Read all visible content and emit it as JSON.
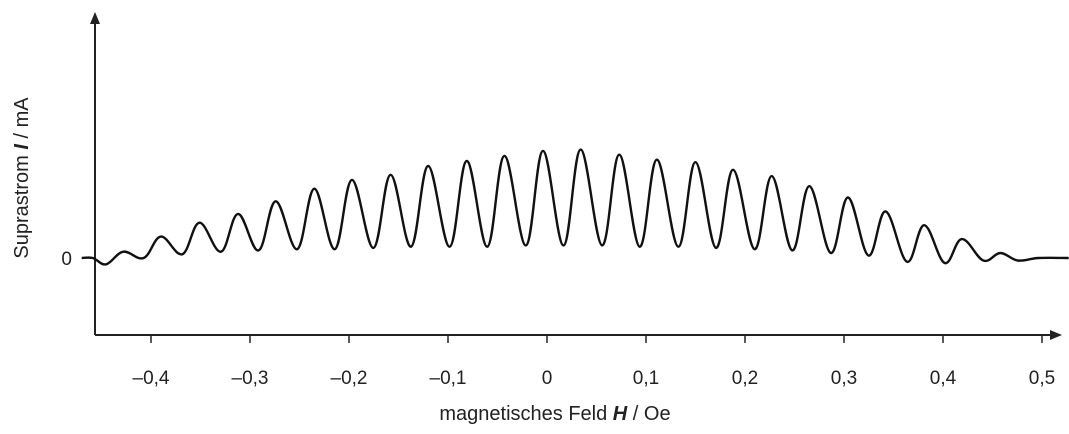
{
  "chart_data": {
    "type": "line",
    "title": "",
    "xlabel": {
      "prefix": "magnetisches Feld ",
      "symbol": "H",
      "suffix": " / Oe"
    },
    "ylabel": {
      "prefix": "Suprastrom ",
      "symbol": "I",
      "suffix": " / mA"
    },
    "xlim": [
      -0.48,
      0.53
    ],
    "ylim": [
      -0.75,
      1.88
    ],
    "grid": false,
    "legend": "none",
    "x_ticks": [
      {
        "value": -0.4,
        "label": "–0,4"
      },
      {
        "value": -0.3,
        "label": "–0,3"
      },
      {
        "value": -0.2,
        "label": "–0,2"
      },
      {
        "value": -0.1,
        "label": "–0,1"
      },
      {
        "value": 0.0,
        "label": "0"
      },
      {
        "value": 0.1,
        "label": "0,1"
      },
      {
        "value": 0.2,
        "label": "0,2"
      },
      {
        "value": 0.3,
        "label": "0,3"
      },
      {
        "value": 0.4,
        "label": "0,4"
      },
      {
        "value": 0.5,
        "label": "0,5"
      }
    ],
    "y_ticks": [
      {
        "value": 0,
        "label": "0"
      }
    ],
    "series": [
      {
        "color": "#111111",
        "description_units": "x in Oe, y in mA (relative)",
        "fringe_period": 0.0385,
        "fringe_center": 0.045,
        "fringes": [
          {
            "x": -0.428,
            "max": 0.05,
            "min": -0.05
          },
          {
            "x": -0.39,
            "max": 0.17,
            "min": 0.0
          },
          {
            "x": -0.351,
            "max": 0.28,
            "min": 0.03
          },
          {
            "x": -0.312,
            "max": 0.35,
            "min": 0.05
          },
          {
            "x": -0.274,
            "max": 0.45,
            "min": 0.06
          },
          {
            "x": -0.235,
            "max": 0.55,
            "min": 0.07
          },
          {
            "x": -0.197,
            "max": 0.62,
            "min": 0.07
          },
          {
            "x": -0.158,
            "max": 0.66,
            "min": 0.08
          },
          {
            "x": -0.12,
            "max": 0.73,
            "min": 0.09
          },
          {
            "x": -0.081,
            "max": 0.77,
            "min": 0.09
          },
          {
            "x": -0.043,
            "max": 0.81,
            "min": 0.09
          },
          {
            "x": -0.004,
            "max": 0.85,
            "min": 0.1
          },
          {
            "x": 0.034,
            "max": 0.86,
            "min": 0.1
          },
          {
            "x": 0.073,
            "max": 0.82,
            "min": 0.1
          },
          {
            "x": 0.111,
            "max": 0.78,
            "min": 0.09
          },
          {
            "x": 0.15,
            "max": 0.76,
            "min": 0.09
          },
          {
            "x": 0.188,
            "max": 0.7,
            "min": 0.08
          },
          {
            "x": 0.227,
            "max": 0.65,
            "min": 0.07
          },
          {
            "x": 0.265,
            "max": 0.57,
            "min": 0.06
          },
          {
            "x": 0.304,
            "max": 0.48,
            "min": 0.04
          },
          {
            "x": 0.342,
            "max": 0.37,
            "min": 0.02
          },
          {
            "x": 0.381,
            "max": 0.26,
            "min": -0.03
          },
          {
            "x": 0.419,
            "max": 0.15,
            "min": -0.04
          },
          {
            "x": 0.458,
            "max": 0.04,
            "min": -0.02
          }
        ],
        "baseline_value": 0.0
      }
    ]
  }
}
